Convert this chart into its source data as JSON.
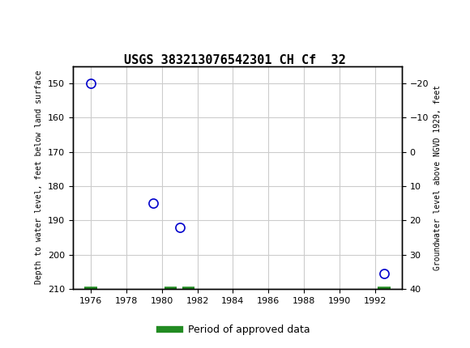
{
  "title": "USGS 383213076542301 CH Cf  32",
  "ylabel_left": "Depth to water level, feet below land surface",
  "ylabel_right": "Groundwater level above NGVD 1929, feet",
  "header_color": "#1a6b3c",
  "background_color": "#ffffff",
  "plot_bg_color": "#ffffff",
  "grid_color": "#cccccc",
  "data_points": [
    {
      "year": 1976.0,
      "depth": 150.0
    },
    {
      "year": 1979.5,
      "depth": 185.0
    },
    {
      "year": 1981.0,
      "depth": 192.0
    },
    {
      "year": 1992.5,
      "depth": 205.5
    }
  ],
  "approved_ticks": [
    1976.0,
    1980.5,
    1981.5,
    1992.5
  ],
  "xlim": [
    1975,
    1993.5
  ],
  "xticks": [
    1976,
    1978,
    1980,
    1982,
    1984,
    1986,
    1988,
    1990,
    1992
  ],
  "ylim_left": [
    210,
    145
  ],
  "ylim_right": [
    40,
    -25
  ],
  "yticks_left": [
    150,
    160,
    170,
    180,
    190,
    200,
    210
  ],
  "yticks_right": [
    40,
    30,
    20,
    10,
    0,
    -10,
    -20
  ],
  "marker_color": "#0000cc",
  "marker_size": 8,
  "approved_color": "#228B22",
  "legend_label": "Period of approved data"
}
